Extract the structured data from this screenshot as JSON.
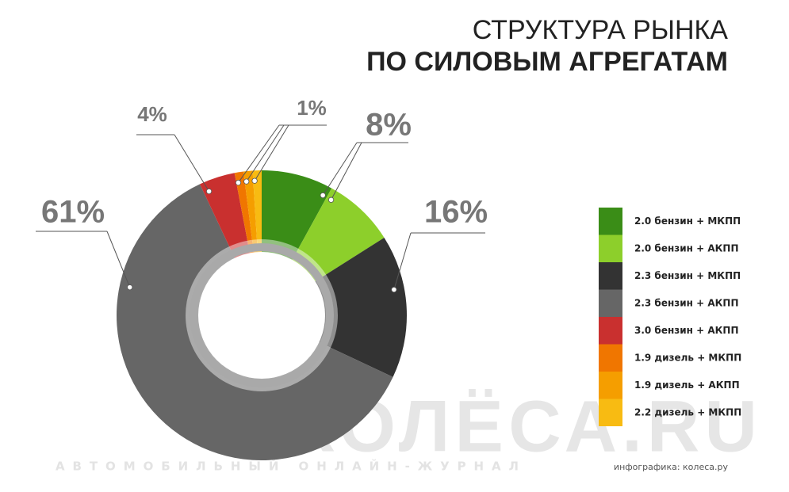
{
  "chart_data": {
    "type": "donut",
    "title": "СТРУКТУРА РЫНКА",
    "subtitle": "ПО СИЛОВЫМ АГРЕГАТАМ",
    "series": [
      {
        "name": "2.0 бензин + МКПП",
        "color": "#3a8d17",
        "value": 8
      },
      {
        "name": "2.0 бензин + АКПП",
        "color": "#8dcf2b",
        "value": 8
      },
      {
        "name": "2.3 бензин + МКПП",
        "color": "#333333",
        "value": 16
      },
      {
        "name": "2.3 бензин + АКПП",
        "color": "#666666",
        "value": 61
      },
      {
        "name": "3.0 бензин + АКПП",
        "color": "#c9302f",
        "value": 4
      },
      {
        "name": "1.9 дизель + МКПП",
        "color": "#f07600",
        "value": 1
      },
      {
        "name": "1.9 дизель + АКПП",
        "color": "#f59e00",
        "value": 1
      },
      {
        "name": "2.2 дизель + МКПП",
        "color": "#f8bb12",
        "value": 1
      }
    ],
    "value_labels": [
      "8%",
      "16%",
      "61%",
      "4%",
      "1%"
    ],
    "watermark": "КОЛЁСА.RU",
    "watermark_tagline": "АВТОМОБИЛЬНЫЙ ОНЛАЙН-ЖУРНАЛ",
    "credit": "инфографика: колеса.ру"
  }
}
